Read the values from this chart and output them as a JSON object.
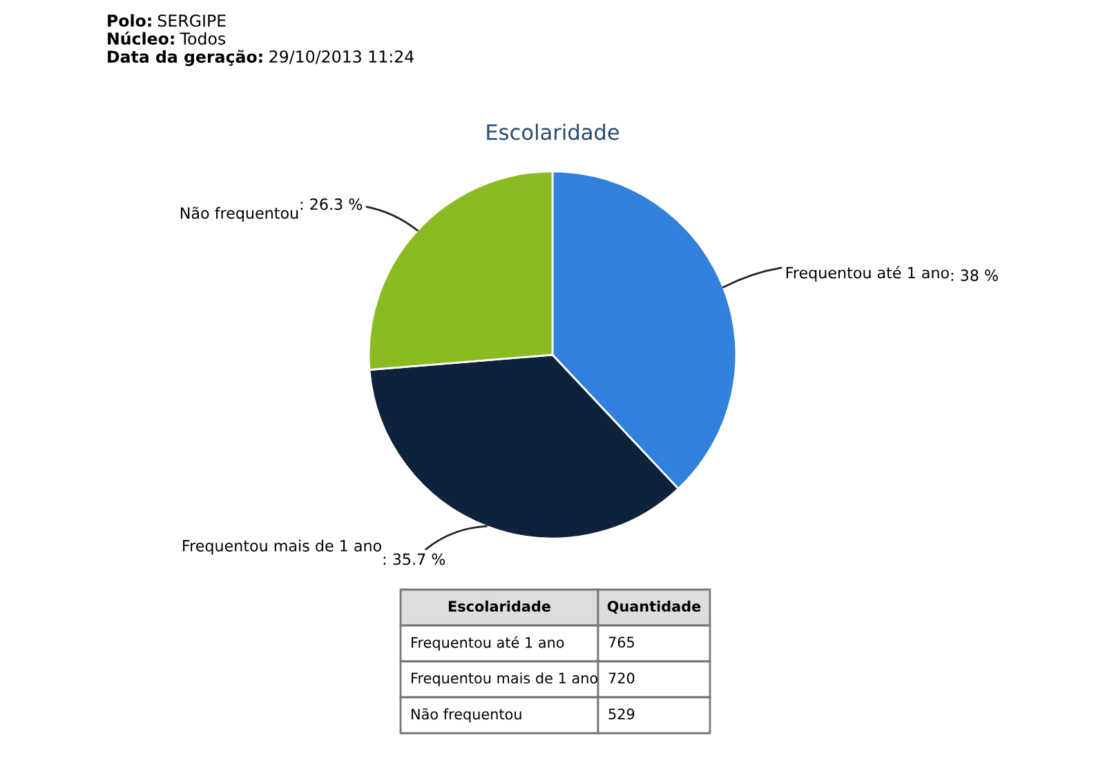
{
  "chart_data": {
    "type": "pie",
    "title": "Escolaridade",
    "categories": [
      "Frequentou até 1 ano",
      "Frequentou mais de 1 ano",
      "Não frequentou"
    ],
    "values": [
      38,
      35.7,
      26.3
    ],
    "value_labels": [
      ": 38 %",
      ": 35.7 %",
      ": 26.3 %"
    ],
    "colors": [
      "#3080dc",
      "#0e223b",
      "#8bbb23"
    ],
    "annotations": [
      "Polo: SERGIPE",
      "Núcleo: Todos",
      "Data da geração: 29/10/2013 11:24",
      "Escolaridade",
      "Quantidade",
      "Frequentou até 1 ano",
      "765",
      "Frequentou mais de 1 ano",
      "720",
      "Não frequentou",
      "529"
    ]
  }
}
